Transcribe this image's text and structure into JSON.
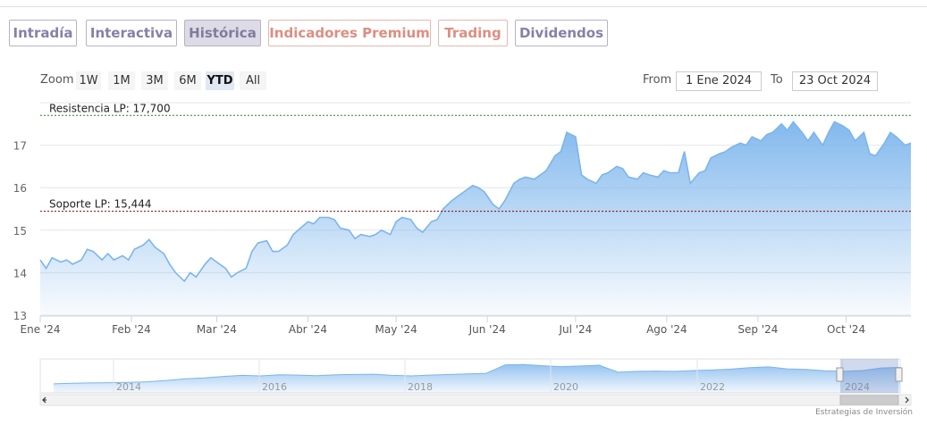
{
  "tabs": [
    {
      "label": "Intradía",
      "active": false,
      "premium": false
    },
    {
      "label": "Interactiva",
      "active": false,
      "premium": false
    },
    {
      "label": "Histórica",
      "active": true,
      "premium": false
    },
    {
      "label": "Indicadores Premium",
      "active": false,
      "premium": true
    },
    {
      "label": "Trading",
      "active": false,
      "premium": true
    },
    {
      "label": "Dividendos",
      "active": false,
      "premium": false
    }
  ],
  "range_selector": {
    "zoom_label": "Zoom",
    "buttons": [
      "1W",
      "1M",
      "3M",
      "6M",
      "YTD",
      "All"
    ],
    "selected": "YTD",
    "from_label": "From",
    "from_value": "1 Ene 2024",
    "to_label": "To",
    "to_value": "23 Oct 2024"
  },
  "colors": {
    "series_line": "#7cb5ec",
    "resistance_line": "#2e7d32",
    "support_line": "#8b0000"
  },
  "chart_data": {
    "type": "area",
    "title": "",
    "xlabel": "",
    "ylabel": "",
    "x_range": [
      "2024-01-01",
      "2024-10-23"
    ],
    "ylim": [
      13,
      18
    ],
    "y_ticks": [
      13,
      14,
      15,
      16,
      17
    ],
    "x_tick_labels": [
      "Ene '24",
      "Feb '24",
      "Mar '24",
      "Abr '24",
      "May '24",
      "Jun '24",
      "Jul '24",
      "Ago '24",
      "Sep '24",
      "Oct '24"
    ],
    "grid": true,
    "series": [
      {
        "points": [
          [
            "2024-01-01",
            14.3
          ],
          [
            "2024-01-03",
            14.1
          ],
          [
            "2024-01-05",
            14.35
          ],
          [
            "2024-01-08",
            14.25
          ],
          [
            "2024-01-10",
            14.3
          ],
          [
            "2024-01-12",
            14.2
          ],
          [
            "2024-01-15",
            14.3
          ],
          [
            "2024-01-17",
            14.55
          ],
          [
            "2024-01-19",
            14.5
          ],
          [
            "2024-01-22",
            14.3
          ],
          [
            "2024-01-24",
            14.45
          ],
          [
            "2024-01-26",
            14.3
          ],
          [
            "2024-01-29",
            14.4
          ],
          [
            "2024-01-31",
            14.3
          ],
          [
            "2024-02-02",
            14.55
          ],
          [
            "2024-02-05",
            14.65
          ],
          [
            "2024-02-07",
            14.78
          ],
          [
            "2024-02-09",
            14.6
          ],
          [
            "2024-02-12",
            14.45
          ],
          [
            "2024-02-14",
            14.2
          ],
          [
            "2024-02-16",
            14.0
          ],
          [
            "2024-02-19",
            13.8
          ],
          [
            "2024-02-21",
            14.0
          ],
          [
            "2024-02-23",
            13.9
          ],
          [
            "2024-02-26",
            14.2
          ],
          [
            "2024-02-28",
            14.35
          ],
          [
            "2024-03-01",
            14.25
          ],
          [
            "2024-03-04",
            14.1
          ],
          [
            "2024-03-06",
            13.9
          ],
          [
            "2024-03-08",
            14.0
          ],
          [
            "2024-03-11",
            14.1
          ],
          [
            "2024-03-13",
            14.5
          ],
          [
            "2024-03-15",
            14.7
          ],
          [
            "2024-03-18",
            14.75
          ],
          [
            "2024-03-20",
            14.5
          ],
          [
            "2024-03-22",
            14.5
          ],
          [
            "2024-03-25",
            14.65
          ],
          [
            "2024-03-27",
            14.9
          ],
          [
            "2024-04-01",
            15.2
          ],
          [
            "2024-04-03",
            15.15
          ],
          [
            "2024-04-05",
            15.3
          ],
          [
            "2024-04-08",
            15.3
          ],
          [
            "2024-04-10",
            15.25
          ],
          [
            "2024-04-12",
            15.05
          ],
          [
            "2024-04-15",
            15.0
          ],
          [
            "2024-04-17",
            14.8
          ],
          [
            "2024-04-19",
            14.9
          ],
          [
            "2024-04-22",
            14.85
          ],
          [
            "2024-04-24",
            14.9
          ],
          [
            "2024-04-26",
            15.0
          ],
          [
            "2024-04-29",
            14.9
          ],
          [
            "2024-05-01",
            15.2
          ],
          [
            "2024-05-03",
            15.3
          ],
          [
            "2024-05-06",
            15.25
          ],
          [
            "2024-05-08",
            15.05
          ],
          [
            "2024-05-10",
            14.95
          ],
          [
            "2024-05-13",
            15.2
          ],
          [
            "2024-05-15",
            15.25
          ],
          [
            "2024-05-17",
            15.5
          ],
          [
            "2024-05-20",
            15.7
          ],
          [
            "2024-05-22",
            15.8
          ],
          [
            "2024-05-24",
            15.9
          ],
          [
            "2024-05-27",
            16.05
          ],
          [
            "2024-05-29",
            16.0
          ],
          [
            "2024-05-31",
            15.9
          ],
          [
            "2024-06-03",
            15.6
          ],
          [
            "2024-06-05",
            15.5
          ],
          [
            "2024-06-07",
            15.7
          ],
          [
            "2024-06-10",
            16.1
          ],
          [
            "2024-06-12",
            16.2
          ],
          [
            "2024-06-14",
            16.25
          ],
          [
            "2024-06-17",
            16.2
          ],
          [
            "2024-06-19",
            16.3
          ],
          [
            "2024-06-21",
            16.4
          ],
          [
            "2024-06-24",
            16.75
          ],
          [
            "2024-06-26",
            16.85
          ],
          [
            "2024-06-28",
            17.3
          ],
          [
            "2024-07-01",
            17.2
          ],
          [
            "2024-07-03",
            16.3
          ],
          [
            "2024-07-05",
            16.2
          ],
          [
            "2024-07-08",
            16.1
          ],
          [
            "2024-07-10",
            16.3
          ],
          [
            "2024-07-12",
            16.35
          ],
          [
            "2024-07-15",
            16.5
          ],
          [
            "2024-07-17",
            16.45
          ],
          [
            "2024-07-19",
            16.25
          ],
          [
            "2024-07-22",
            16.2
          ],
          [
            "2024-07-24",
            16.35
          ],
          [
            "2024-07-26",
            16.3
          ],
          [
            "2024-07-29",
            16.25
          ],
          [
            "2024-07-31",
            16.4
          ],
          [
            "2024-08-02",
            16.35
          ],
          [
            "2024-08-05",
            16.35
          ],
          [
            "2024-08-07",
            16.85
          ],
          [
            "2024-08-09",
            16.1
          ],
          [
            "2024-08-12",
            16.35
          ],
          [
            "2024-08-14",
            16.4
          ],
          [
            "2024-08-16",
            16.7
          ],
          [
            "2024-08-19",
            16.8
          ],
          [
            "2024-08-21",
            16.85
          ],
          [
            "2024-08-23",
            16.95
          ],
          [
            "2024-08-26",
            17.05
          ],
          [
            "2024-08-28",
            17.0
          ],
          [
            "2024-08-30",
            17.2
          ],
          [
            "2024-09-02",
            17.1
          ],
          [
            "2024-09-04",
            17.25
          ],
          [
            "2024-09-06",
            17.3
          ],
          [
            "2024-09-09",
            17.5
          ],
          [
            "2024-09-11",
            17.35
          ],
          [
            "2024-09-13",
            17.55
          ],
          [
            "2024-09-16",
            17.3
          ],
          [
            "2024-09-18",
            17.1
          ],
          [
            "2024-09-20",
            17.3
          ],
          [
            "2024-09-23",
            17.0
          ],
          [
            "2024-09-25",
            17.3
          ],
          [
            "2024-09-27",
            17.55
          ],
          [
            "2024-09-30",
            17.45
          ],
          [
            "2024-10-02",
            17.35
          ],
          [
            "2024-10-04",
            17.1
          ],
          [
            "2024-10-07",
            17.3
          ],
          [
            "2024-10-09",
            16.8
          ],
          [
            "2024-10-11",
            16.75
          ],
          [
            "2024-10-14",
            17.05
          ],
          [
            "2024-10-16",
            17.3
          ],
          [
            "2024-10-18",
            17.2
          ],
          [
            "2024-10-21",
            17.0
          ],
          [
            "2024-10-23",
            17.05
          ]
        ]
      }
    ],
    "annotations": [
      {
        "label": "Resistencia LP: 17,700",
        "y": 17.7,
        "style": "dashed",
        "color": "#2e7d32"
      },
      {
        "label": "Soporte LP: 15,444",
        "y": 15.444,
        "style": "dashed",
        "color": "#8b0000"
      }
    ],
    "navigator": {
      "x_tick_labels": [
        "2014",
        "2016",
        "2018",
        "2020",
        "2022",
        "2024"
      ],
      "series_values": [
        3.2,
        3.4,
        3.5,
        3.6,
        3.7,
        3.9,
        4.4,
        5.0,
        5.3,
        5.8,
        6.2,
        6.0,
        6.4,
        6.3,
        6.1,
        6.4,
        6.5,
        6.6,
        6.2,
        6.0,
        6.3,
        6.5,
        6.7,
        6.9,
        9.9,
        10.0,
        9.6,
        9.3,
        9.5,
        9.8,
        7.3,
        7.6,
        7.7,
        7.6,
        7.9,
        8.1,
        8.4,
        8.9,
        9.2,
        8.5,
        8.3,
        7.8,
        7.6,
        7.9,
        8.8,
        9.0
      ]
    }
  },
  "credit": "Estrategias de Inversión"
}
